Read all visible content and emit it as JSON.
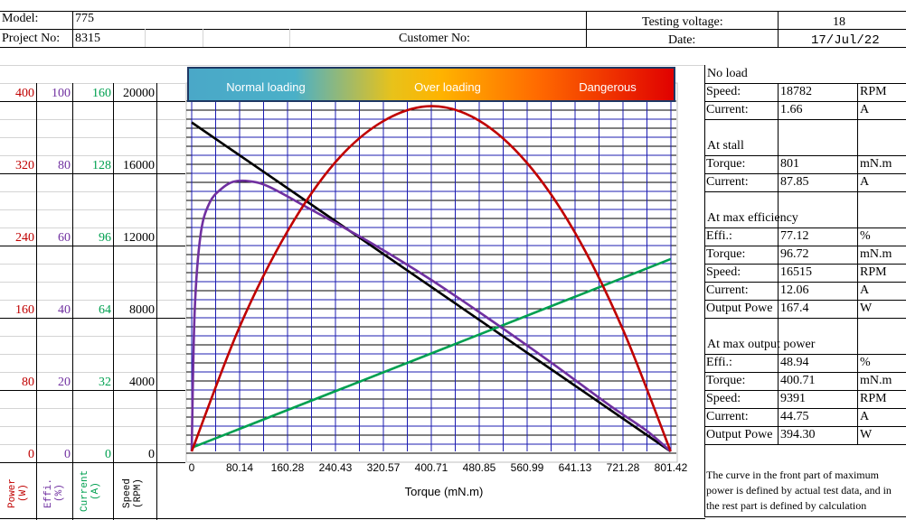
{
  "header": {
    "model_label": "Model:",
    "model_value": "775",
    "project_label": "Project No:",
    "project_value": "8315",
    "customer_label": "Customer No:",
    "voltage_label": "Testing voltage:",
    "voltage_value": "18",
    "date_label": "Date:",
    "date_value": "17/Jul/22"
  },
  "left_axes": {
    "power": {
      "label": "Power\n(W)",
      "color": "#c00000",
      "ticks": [
        "400",
        "320",
        "240",
        "160",
        "80",
        "0"
      ]
    },
    "effi": {
      "label": "Effi.\n(%)",
      "color": "#7030a0",
      "ticks": [
        "100",
        "80",
        "60",
        "40",
        "20",
        "0"
      ]
    },
    "current": {
      "label": "Current\n(A)",
      "color": "#00a050",
      "ticks": [
        "160",
        "128",
        "96",
        "64",
        "32",
        "0"
      ]
    },
    "speed": {
      "label": "Speed\n(RPM)",
      "color": "#000000",
      "ticks": [
        "20000",
        "16000",
        "12000",
        "8000",
        "4000",
        "0"
      ]
    }
  },
  "banner": {
    "normal": "Normal loading",
    "over": "Over loading",
    "danger": "Dangerous"
  },
  "chart_data": {
    "type": "line",
    "xlabel": "Torque (mN.m)",
    "x_ticks": [
      "0",
      "80.14",
      "160.28",
      "240.43",
      "320.57",
      "400.71",
      "480.85",
      "560.99",
      "641.13",
      "721.28",
      "801.42"
    ],
    "xlim": [
      0,
      801.42
    ],
    "y_axes": {
      "speed": {
        "label": "Speed (RPM)",
        "ylim": [
          0,
          20000
        ]
      },
      "current": {
        "label": "Current (A)",
        "ylim": [
          0,
          160
        ]
      },
      "efficiency": {
        "label": "Effi. (%)",
        "ylim": [
          0,
          100
        ]
      },
      "power": {
        "label": "Power (W)",
        "ylim": [
          0,
          400
        ]
      }
    },
    "series": [
      {
        "name": "Speed",
        "axis": "speed",
        "color": "#000000",
        "x": [
          0,
          96.72,
          400.71,
          801
        ],
        "y": [
          18782,
          16515,
          9391,
          0
        ]
      },
      {
        "name": "Current",
        "axis": "current",
        "color": "#00a050",
        "x": [
          0,
          96.72,
          400.71,
          801
        ],
        "y": [
          1.66,
          12.06,
          44.75,
          87.85
        ]
      },
      {
        "name": "Efficiency",
        "axis": "efficiency",
        "color": "#7030a0",
        "x": [
          0,
          5,
          15,
          30,
          50,
          70,
          96.72,
          130,
          200,
          300,
          400.71,
          500,
          600,
          700,
          760,
          801
        ],
        "y": [
          0,
          40,
          62,
          71,
          75,
          77,
          77.12,
          75.5,
          69,
          59.5,
          48.94,
          37.5,
          25.5,
          13,
          6,
          0
        ]
      },
      {
        "name": "Output Power",
        "axis": "power",
        "color": "#c00000",
        "x": [
          0,
          80,
          160,
          240,
          320,
          400.71,
          480,
          560,
          640,
          720,
          801
        ],
        "y": [
          0,
          142,
          251,
          330,
          377,
          394.3,
          378,
          330,
          251,
          141,
          0
        ]
      }
    ]
  },
  "right_panel": {
    "no_load": {
      "title": "No load",
      "rows": [
        {
          "label": "Speed:",
          "value": "18782",
          "unit": "RPM"
        },
        {
          "label": "Current:",
          "value": "1.66",
          "unit": "A"
        }
      ]
    },
    "stall": {
      "title": "At stall",
      "rows": [
        {
          "label": "Torque:",
          "value": "801",
          "unit": "mN.m"
        },
        {
          "label": "Current:",
          "value": "87.85",
          "unit": "A"
        }
      ]
    },
    "max_eff": {
      "title": "At max efficiency",
      "rows": [
        {
          "label": "Effi.:",
          "value": "77.12",
          "unit": "%"
        },
        {
          "label": "Torque:",
          "value": "96.72",
          "unit": "mN.m"
        },
        {
          "label": "Speed:",
          "value": "16515",
          "unit": "RPM"
        },
        {
          "label": "Current:",
          "value": "12.06",
          "unit": "A"
        },
        {
          "label": "Output Powe",
          "value": "167.4",
          "unit": "W"
        }
      ]
    },
    "max_power": {
      "title": "At max output power",
      "rows": [
        {
          "label": "Effi.:",
          "value": "48.94",
          "unit": "%"
        },
        {
          "label": "Torque:",
          "value": "400.71",
          "unit": "mN.m"
        },
        {
          "label": "Speed:",
          "value": "9391",
          "unit": "RPM"
        },
        {
          "label": "Current:",
          "value": "44.75",
          "unit": "A"
        },
        {
          "label": "Output Powe",
          "value": "394.30",
          "unit": "W"
        }
      ]
    },
    "note": "The curve in the front part of maximum power is defined by actual test data, and in the rest part is defined by calculation"
  }
}
